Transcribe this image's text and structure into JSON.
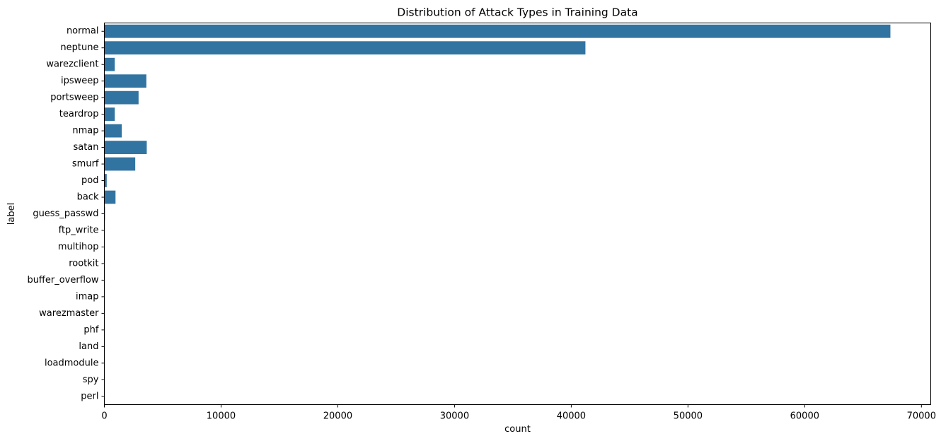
{
  "chart_data": {
    "type": "bar",
    "orientation": "horizontal",
    "title": "Distribution of Attack Types in Training Data",
    "xlabel": "count",
    "ylabel": "label",
    "categories": [
      "normal",
      "neptune",
      "warezclient",
      "ipsweep",
      "portsweep",
      "teardrop",
      "nmap",
      "satan",
      "smurf",
      "pod",
      "back",
      "guess_passwd",
      "ftp_write",
      "multihop",
      "rootkit",
      "buffer_overflow",
      "imap",
      "warezmaster",
      "phf",
      "land",
      "loadmodule",
      "spy",
      "perl"
    ],
    "values": [
      67343,
      41214,
      890,
      3599,
      2931,
      892,
      1493,
      3633,
      2646,
      201,
      956,
      53,
      8,
      7,
      10,
      30,
      11,
      20,
      4,
      18,
      9,
      2,
      3
    ],
    "xlim": [
      0,
      70800
    ],
    "xticks": [
      0,
      10000,
      20000,
      30000,
      40000,
      50000,
      60000,
      70000
    ],
    "xtick_labels": [
      "0",
      "10000",
      "20000",
      "30000",
      "40000",
      "50000",
      "60000",
      "70000"
    ],
    "grid": false,
    "bar_color": "#3274a1"
  }
}
